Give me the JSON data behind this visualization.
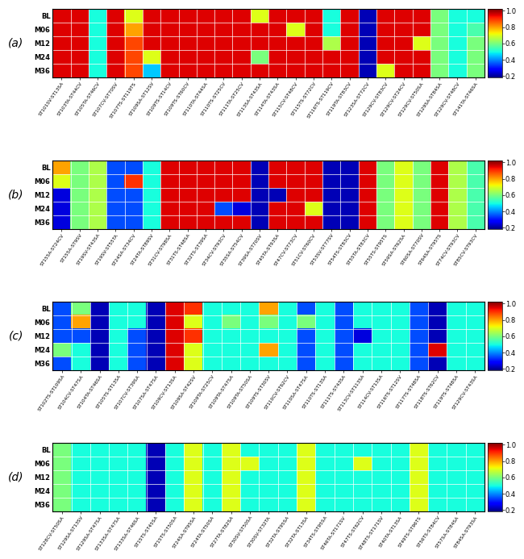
{
  "panels": [
    {
      "label": "(a)",
      "rows": [
        "BL",
        "M06",
        "M12",
        "M24",
        "M36"
      ],
      "cols": [
        "ST101SV-ST13SA",
        "ST103TA-ST44CV",
        "ST105TA-ST46CV",
        "ST107CV-ST70SV",
        "ST107TS-ST119TS",
        "ST109SA-ST12SV",
        "ST109TS-ST14CV",
        "ST109TS-ST60CV",
        "ST110TA-ST44SA",
        "ST110TS-ST25CV",
        "ST111TA-ST25CV",
        "ST113SA-ST43SA",
        "ST114TA-ST43SA",
        "ST115CV-ST48CV",
        "ST115TS-ST72CV",
        "ST116TS-ST119CV",
        "ST119TA-ST83CV",
        "ST123SA-ST72CV",
        "ST129CV-ST83CV",
        "ST129CV-ST24CV",
        "ST129CV-ST50SA",
        "ST129SA-ST84SA",
        "ST129CV-ST48CV",
        "ST141TA-ST46SA"
      ],
      "data": [
        [
          0.95,
          0.95,
          0.5,
          0.95,
          0.7,
          0.95,
          0.95,
          0.95,
          0.95,
          0.95,
          0.95,
          0.7,
          0.95,
          0.95,
          0.95,
          0.5,
          0.95,
          0.22,
          0.95,
          0.95,
          0.95,
          0.6,
          0.5,
          0.5
        ],
        [
          0.95,
          0.95,
          0.5,
          0.95,
          0.8,
          0.95,
          0.95,
          0.95,
          0.95,
          0.95,
          0.95,
          0.95,
          0.95,
          0.7,
          0.95,
          0.5,
          0.95,
          0.22,
          0.95,
          0.95,
          0.95,
          0.6,
          0.5,
          0.55
        ],
        [
          0.95,
          0.95,
          0.5,
          0.95,
          0.88,
          0.95,
          0.95,
          0.95,
          0.95,
          0.95,
          0.95,
          0.95,
          0.95,
          0.95,
          0.95,
          0.65,
          0.95,
          0.22,
          0.95,
          0.95,
          0.7,
          0.6,
          0.5,
          0.6
        ],
        [
          0.95,
          0.95,
          0.5,
          0.95,
          0.88,
          0.7,
          0.95,
          0.95,
          0.95,
          0.95,
          0.95,
          0.6,
          0.95,
          0.95,
          0.95,
          0.95,
          0.95,
          0.22,
          0.95,
          0.95,
          0.95,
          0.6,
          0.5,
          0.6
        ],
        [
          0.95,
          0.95,
          0.5,
          0.95,
          0.88,
          0.45,
          0.95,
          0.95,
          0.95,
          0.95,
          0.95,
          0.95,
          0.95,
          0.95,
          0.95,
          0.95,
          0.95,
          0.22,
          0.7,
          0.95,
          0.95,
          0.6,
          0.5,
          0.6
        ]
      ]
    },
    {
      "label": "(b)",
      "rows": [
        "BL",
        "M06",
        "M12",
        "M24",
        "M36"
      ],
      "cols": [
        "ST155A-ST24CV",
        "ST155A-ST9SV",
        "ST19SV-ST43SA",
        "ST19SV-ST55TA",
        "ST24SA-ST34CV",
        "ST24TA-ST89SV",
        "ST31CV-ST98SA",
        "ST31TS-ST48SA",
        "ST32TS-ST39SA",
        "ST34CV-ST93CV",
        "ST35SA-ST54CV",
        "ST39SA-ST70SV",
        "ST45TA-ST93SA",
        "ST47CV-ST73CV",
        "ST51CV-ST60CV",
        "ST53SV-ST77SV",
        "ST54TS-ST83CV",
        "ST55TA-ST83CV",
        "ST55TS-ST95TS",
        "ST59SA-ST62SA",
        "ST60SA-ST70SV",
        "ST64SA-ST95TS",
        "ST74CV-ST93CV",
        "ST85CV-ST93CV"
      ],
      "data": [
        [
          0.8,
          0.6,
          0.65,
          0.35,
          0.35,
          0.5,
          0.95,
          0.95,
          0.95,
          0.95,
          0.95,
          0.22,
          0.95,
          0.95,
          0.95,
          0.22,
          0.22,
          0.95,
          0.6,
          0.7,
          0.6,
          0.95,
          0.65,
          0.55
        ],
        [
          0.7,
          0.6,
          0.65,
          0.35,
          0.9,
          0.5,
          0.95,
          0.95,
          0.95,
          0.95,
          0.95,
          0.22,
          0.95,
          0.95,
          0.95,
          0.22,
          0.22,
          0.95,
          0.6,
          0.7,
          0.6,
          0.95,
          0.65,
          0.55
        ],
        [
          0.25,
          0.6,
          0.65,
          0.35,
          0.35,
          0.5,
          0.95,
          0.95,
          0.95,
          0.95,
          0.95,
          0.22,
          0.22,
          0.95,
          0.95,
          0.22,
          0.22,
          0.95,
          0.6,
          0.7,
          0.6,
          0.95,
          0.65,
          0.55
        ],
        [
          0.25,
          0.6,
          0.65,
          0.35,
          0.35,
          0.5,
          0.95,
          0.95,
          0.95,
          0.35,
          0.25,
          0.22,
          0.95,
          0.95,
          0.7,
          0.22,
          0.22,
          0.95,
          0.6,
          0.7,
          0.6,
          0.95,
          0.65,
          0.55
        ],
        [
          0.25,
          0.6,
          0.65,
          0.35,
          0.35,
          0.5,
          0.95,
          0.95,
          0.95,
          0.95,
          0.95,
          0.22,
          0.95,
          0.95,
          0.95,
          0.22,
          0.22,
          0.95,
          0.6,
          0.7,
          0.6,
          0.95,
          0.65,
          0.55
        ]
      ]
    },
    {
      "label": "(c)",
      "rows": [
        "BL",
        "M06",
        "M12",
        "M24",
        "M36"
      ],
      "cols": [
        "ST102TS-ST109SA",
        "ST104CV-ST47SA",
        "ST104TA-ST46SA",
        "ST105TS-ST13SA",
        "ST107CV-ST39SA",
        "ST107SA-ST47SA",
        "ST109CV-ST13SA",
        "ST109SA-ST42SV",
        "ST109TA-ST25CV",
        "ST109TA-ST47SA",
        "ST109TA-ST50SA",
        "ST109TS-ST30SV",
        "ST110CV-ST62CV",
        "ST110SA-ST47SA",
        "ST110TS-ST13SA",
        "ST111TS-ST43SA",
        "ST113CV-ST113SA",
        "ST114CV-ST13SA",
        "ST116TS-ST12SV",
        "ST117TS-ST48SA",
        "ST118TS-ST62CV",
        "ST119TS-ST48SA",
        "ST129CV-ST43SA"
      ],
      "data": [
        [
          0.35,
          0.6,
          0.22,
          0.5,
          0.5,
          0.22,
          0.95,
          0.9,
          0.5,
          0.5,
          0.5,
          0.8,
          0.5,
          0.35,
          0.5,
          0.35,
          0.5,
          0.5,
          0.5,
          0.35,
          0.22,
          0.5,
          0.5
        ],
        [
          0.35,
          0.8,
          0.22,
          0.5,
          0.5,
          0.22,
          0.95,
          0.7,
          0.5,
          0.6,
          0.5,
          0.6,
          0.5,
          0.6,
          0.5,
          0.35,
          0.5,
          0.5,
          0.5,
          0.35,
          0.22,
          0.5,
          0.5
        ],
        [
          0.35,
          0.35,
          0.22,
          0.5,
          0.35,
          0.22,
          0.95,
          0.9,
          0.5,
          0.5,
          0.5,
          0.5,
          0.5,
          0.35,
          0.5,
          0.35,
          0.25,
          0.5,
          0.5,
          0.35,
          0.22,
          0.5,
          0.5
        ],
        [
          0.6,
          0.5,
          0.22,
          0.5,
          0.35,
          0.22,
          0.95,
          0.7,
          0.5,
          0.5,
          0.5,
          0.8,
          0.5,
          0.35,
          0.5,
          0.35,
          0.5,
          0.5,
          0.5,
          0.35,
          0.95,
          0.5,
          0.5
        ],
        [
          0.35,
          0.5,
          0.22,
          0.5,
          0.35,
          0.22,
          0.95,
          0.7,
          0.5,
          0.5,
          0.5,
          0.5,
          0.5,
          0.35,
          0.5,
          0.35,
          0.5,
          0.5,
          0.5,
          0.35,
          0.22,
          0.5,
          0.5
        ]
      ]
    },
    {
      "label": "(d)",
      "rows": [
        "BL",
        "M06",
        "M12",
        "M24",
        "M36"
      ],
      "cols": [
        "ST128CV-ST50SA",
        "ST129SA-ST13SV",
        "ST129SA-ST47SA",
        "ST133SA-ST47SA",
        "ST133SA-ST46SA",
        "ST15TS-ST45SA",
        "ST15TS-ST50SA",
        "ST24SA-ST95SA",
        "ST24TA-ST50SA",
        "ST27TA-ST82SA",
        "ST30SV-ST50SA",
        "ST30SV-ST32TA",
        "ST32TA-ST95SA",
        "ST32TA-ST13SA",
        "ST34TS-ST95SA",
        "ST46TA-ST171SV",
        "ST47TS-ST62CV",
        "ST48TS-ST171SV",
        "ST40TA-ST13SA",
        "ST49TS-ST96TS",
        "ST56TS-ST84CV",
        "ST57SA-ST84SA",
        "ST84SA-ST93SA"
      ],
      "data": [
        [
          0.6,
          0.5,
          0.5,
          0.5,
          0.5,
          0.22,
          0.5,
          0.7,
          0.5,
          0.7,
          0.5,
          0.5,
          0.5,
          0.7,
          0.5,
          0.5,
          0.5,
          0.5,
          0.5,
          0.7,
          0.5,
          0.5,
          0.5
        ],
        [
          0.6,
          0.5,
          0.5,
          0.5,
          0.5,
          0.22,
          0.5,
          0.7,
          0.5,
          0.7,
          0.7,
          0.5,
          0.5,
          0.7,
          0.5,
          0.5,
          0.7,
          0.5,
          0.5,
          0.7,
          0.5,
          0.5,
          0.5
        ],
        [
          0.6,
          0.5,
          0.5,
          0.5,
          0.5,
          0.22,
          0.5,
          0.7,
          0.5,
          0.7,
          0.5,
          0.5,
          0.5,
          0.7,
          0.5,
          0.5,
          0.5,
          0.5,
          0.5,
          0.7,
          0.5,
          0.5,
          0.5
        ],
        [
          0.6,
          0.5,
          0.5,
          0.5,
          0.5,
          0.22,
          0.5,
          0.7,
          0.5,
          0.7,
          0.5,
          0.5,
          0.5,
          0.7,
          0.5,
          0.5,
          0.5,
          0.5,
          0.5,
          0.7,
          0.5,
          0.5,
          0.5
        ],
        [
          0.6,
          0.5,
          0.5,
          0.5,
          0.5,
          0.22,
          0.5,
          0.7,
          0.5,
          0.7,
          0.5,
          0.5,
          0.5,
          0.7,
          0.5,
          0.5,
          0.5,
          0.5,
          0.5,
          0.7,
          0.5,
          0.5,
          0.5
        ]
      ]
    }
  ],
  "colorbar_ticks": [
    0.2,
    0.4,
    0.6,
    0.8,
    1.0
  ],
  "vmin": 0.18,
  "vmax": 1.02
}
